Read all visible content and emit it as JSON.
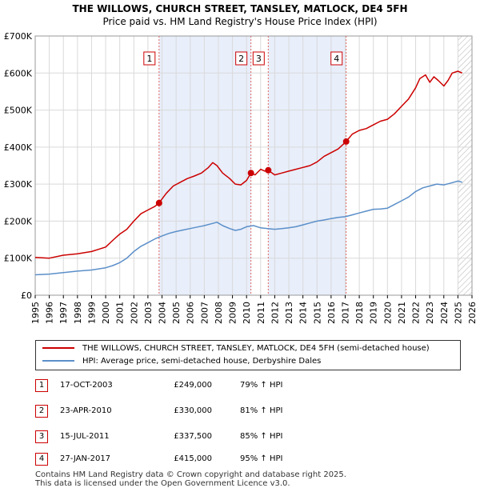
{
  "chart_data": {
    "type": "line",
    "title": "THE WILLOWS, CHURCH STREET, TANSLEY, MATLOCK, DE4 5FH",
    "subtitle": "Price paid vs. HM Land Registry's House Price Index (HPI)",
    "xlabel": "",
    "ylabel": "",
    "xlim": [
      1995,
      2026
    ],
    "ylim": [
      0,
      700000
    ],
    "y_ticks": [
      {
        "value": 0,
        "label": "£0"
      },
      {
        "value": 100000,
        "label": "£100K"
      },
      {
        "value": 200000,
        "label": "£200K"
      },
      {
        "value": 300000,
        "label": "£300K"
      },
      {
        "value": 400000,
        "label": "£400K"
      },
      {
        "value": 500000,
        "label": "£500K"
      },
      {
        "value": 600000,
        "label": "£600K"
      },
      {
        "value": 700000,
        "label": "£700K"
      }
    ],
    "x_ticks": [
      "1995",
      "1996",
      "1997",
      "1998",
      "1999",
      "2000",
      "2001",
      "2002",
      "2003",
      "2004",
      "2005",
      "2006",
      "2007",
      "2008",
      "2009",
      "2010",
      "2011",
      "2012",
      "2013",
      "2014",
      "2015",
      "2016",
      "2017",
      "2018",
      "2019",
      "2020",
      "2021",
      "2022",
      "2023",
      "2024",
      "2025",
      "2026"
    ],
    "grid": true,
    "shaded_regions": [
      [
        2003.79,
        2010.31
      ],
      [
        2011.54,
        2017.07
      ]
    ],
    "hatched_after": 2025.0,
    "series": [
      {
        "name": "THE WILLOWS, CHURCH STREET, TANSLEY, MATLOCK, DE4 5FH (semi-detached house)",
        "color": "#cc0000",
        "x": [
          1995.0,
          1996.0,
          1997.0,
          1998.0,
          1999.0,
          2000.0,
          2000.5,
          2001.0,
          2001.5,
          2002.0,
          2002.5,
          2003.0,
          2003.5,
          2003.79,
          2004.3,
          2004.8,
          2005.3,
          2005.8,
          2006.3,
          2006.8,
          2007.3,
          2007.6,
          2007.9,
          2008.3,
          2008.8,
          2009.2,
          2009.6,
          2010.0,
          2010.31,
          2010.6,
          2011.0,
          2011.3,
          2011.54,
          2012.0,
          2012.5,
          2013.0,
          2013.5,
          2014.0,
          2014.5,
          2015.0,
          2015.5,
          2016.0,
          2016.5,
          2017.07,
          2017.5,
          2018.0,
          2018.5,
          2019.0,
          2019.5,
          2020.0,
          2020.5,
          2021.0,
          2021.5,
          2022.0,
          2022.3,
          2022.7,
          2023.0,
          2023.3,
          2023.6,
          2024.0,
          2024.3,
          2024.6,
          2025.0,
          2025.3
        ],
        "y": [
          102000,
          100000,
          108000,
          112000,
          118000,
          130000,
          148000,
          165000,
          178000,
          200000,
          220000,
          230000,
          240000,
          249000,
          275000,
          295000,
          305000,
          315000,
          322000,
          330000,
          345000,
          358000,
          350000,
          330000,
          315000,
          300000,
          298000,
          310000,
          330000,
          325000,
          340000,
          335000,
          337500,
          325000,
          330000,
          335000,
          340000,
          345000,
          350000,
          360000,
          375000,
          385000,
          395000,
          415000,
          435000,
          445000,
          450000,
          460000,
          470000,
          475000,
          490000,
          510000,
          530000,
          560000,
          585000,
          595000,
          575000,
          590000,
          580000,
          565000,
          580000,
          600000,
          605000,
          600000
        ]
      },
      {
        "name": "HPI: Average price, semi-detached house, Derbyshire Dales",
        "color": "#5b8fc9",
        "x": [
          1995.0,
          1996.0,
          1997.0,
          1998.0,
          1999.0,
          2000.0,
          2000.5,
          2001.0,
          2001.5,
          2002.0,
          2002.5,
          2003.0,
          2003.5,
          2004.0,
          2004.5,
          2005.0,
          2005.5,
          2006.0,
          2006.5,
          2007.0,
          2007.5,
          2007.9,
          2008.3,
          2008.8,
          2009.2,
          2009.6,
          2010.0,
          2010.5,
          2011.0,
          2011.5,
          2012.0,
          2012.5,
          2013.0,
          2013.5,
          2014.0,
          2014.5,
          2015.0,
          2015.5,
          2016.0,
          2016.5,
          2017.0,
          2017.5,
          2018.0,
          2018.5,
          2019.0,
          2019.5,
          2020.0,
          2020.5,
          2021.0,
          2021.5,
          2022.0,
          2022.5,
          2023.0,
          2023.5,
          2024.0,
          2024.5,
          2025.0,
          2025.3
        ],
        "y": [
          55000,
          57000,
          61000,
          65000,
          68000,
          74000,
          80000,
          88000,
          100000,
          118000,
          132000,
          142000,
          152000,
          160000,
          167000,
          172000,
          176000,
          180000,
          184000,
          188000,
          193000,
          197000,
          188000,
          180000,
          175000,
          178000,
          185000,
          188000,
          182000,
          180000,
          178000,
          180000,
          182000,
          185000,
          190000,
          195000,
          200000,
          203000,
          207000,
          210000,
          212000,
          217000,
          222000,
          227000,
          232000,
          233000,
          235000,
          245000,
          255000,
          265000,
          280000,
          290000,
          295000,
          300000,
          298000,
          303000,
          308000,
          305000
        ]
      }
    ],
    "sales": [
      {
        "num": "1",
        "x": 2003.79,
        "y": 249000
      },
      {
        "num": "2",
        "x": 2010.31,
        "y": 330000
      },
      {
        "num": "3",
        "x": 2011.54,
        "y": 337500
      },
      {
        "num": "4",
        "x": 2017.07,
        "y": 415000
      }
    ]
  },
  "legend": {
    "property_label": "THE WILLOWS, CHURCH STREET, TANSLEY, MATLOCK, DE4 5FH (semi-detached house)",
    "hpi_label": "HPI: Average price, semi-detached house, Derbyshire Dales",
    "property_color": "#cc0000",
    "hpi_color": "#5b8fc9"
  },
  "sales_table": [
    {
      "num": "1",
      "date": "17-OCT-2003",
      "price": "£249,000",
      "hpi": "79% ↑ HPI"
    },
    {
      "num": "2",
      "date": "23-APR-2010",
      "price": "£330,000",
      "hpi": "81% ↑ HPI"
    },
    {
      "num": "3",
      "date": "15-JUL-2011",
      "price": "£337,500",
      "hpi": "85% ↑ HPI"
    },
    {
      "num": "4",
      "date": "27-JAN-2017",
      "price": "£415,000",
      "hpi": "95% ↑ HPI"
    }
  ],
  "footer": {
    "line1": "Contains HM Land Registry data © Crown copyright and database right 2025.",
    "line2": "This data is licensed under the Open Government Licence v3.0."
  }
}
